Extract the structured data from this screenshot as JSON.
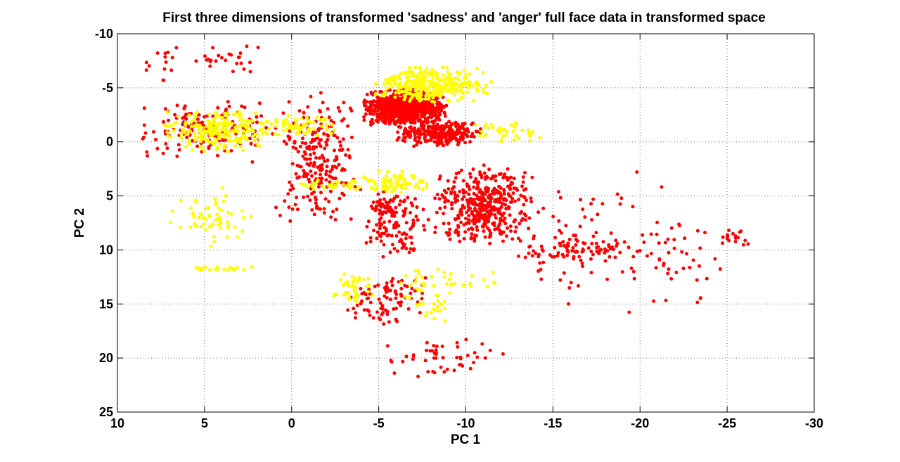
{
  "chart_data": {
    "type": "scatter",
    "title": "First three dimensions of transformed 'sadness' and 'anger' full face data in transformed space",
    "xlabel": "PC 1",
    "ylabel": "PC 2",
    "xlim": [
      10,
      -30
    ],
    "ylim": [
      -10,
      25
    ],
    "x_reversed": true,
    "y_reversed": true,
    "xticks": [
      10,
      5,
      0,
      -5,
      -10,
      -15,
      -20,
      -25,
      -30
    ],
    "yticks": [
      -10,
      -5,
      0,
      5,
      10,
      15,
      20,
      25
    ],
    "grid": true,
    "series": [
      {
        "color": "#ff0000",
        "clusters": [
          {
            "x": [
              -4,
              -9
            ],
            "y": [
              -5,
              -1.5
            ],
            "n": 950
          },
          {
            "x": [
              -6,
              -11
            ],
            "y": [
              -2,
              0.5
            ],
            "n": 260
          },
          {
            "x": [
              -8,
              -14
            ],
            "y": [
              2,
              10
            ],
            "n": 420
          },
          {
            "x": [
              -4,
              -8
            ],
            "y": [
              4,
              11
            ],
            "n": 140
          },
          {
            "x": [
              1,
              -4
            ],
            "y": [
              -5,
              8
            ],
            "n": 240
          },
          {
            "x": [
              9,
              1
            ],
            "y": [
              -4,
              2
            ],
            "n": 150
          },
          {
            "x": [
              -3,
              -8
            ],
            "y": [
              12,
              17
            ],
            "n": 90
          },
          {
            "x": [
              -13,
              -20
            ],
            "y": [
              9,
              11
            ],
            "n": 70
          },
          {
            "x": [
              -12,
              -22
            ],
            "y": [
              2,
              16
            ],
            "n": 80
          },
          {
            "x": [
              -4,
              -13
            ],
            "y": [
              18,
              22
            ],
            "n": 50
          },
          {
            "x": [
              -18,
              -26
            ],
            "y": [
              5,
              17
            ],
            "n": 40
          },
          {
            "x": [
              -24.5,
              -26.7
            ],
            "y": [
              8,
              10
            ],
            "n": 18
          },
          {
            "x": [
              6,
              1
            ],
            "y": [
              -9.5,
              -6
            ],
            "n": 25
          },
          {
            "x": [
              8.5,
              6
            ],
            "y": [
              -9.5,
              -5
            ],
            "n": 14
          }
        ]
      },
      {
        "color": "#ffff00",
        "clusters": [
          {
            "x": [
              -4.5,
              -11.5
            ],
            "y": [
              -7,
              -3.5
            ],
            "n": 330
          },
          {
            "x": [
              7.5,
              1
            ],
            "y": [
              -3,
              1
            ],
            "n": 220
          },
          {
            "x": [
              2,
              -3
            ],
            "y": [
              -2.5,
              -0.5
            ],
            "n": 70
          },
          {
            "x": [
              -4,
              -8
            ],
            "y": [
              2.5,
              5
            ],
            "n": 80
          },
          {
            "x": [
              0,
              -5
            ],
            "y": [
              3.5,
              4.5
            ],
            "n": 40
          },
          {
            "x": [
              7,
              2
            ],
            "y": [
              4,
              10
            ],
            "n": 60
          },
          {
            "x": [
              6,
              2
            ],
            "y": [
              11.5,
              12
            ],
            "n": 20
          },
          {
            "x": [
              -2,
              -5
            ],
            "y": [
              12,
              15
            ],
            "n": 45
          },
          {
            "x": [
              -6,
              -12
            ],
            "y": [
              11.5,
              14.5
            ],
            "n": 40
          },
          {
            "x": [
              -10,
              -14.5
            ],
            "y": [
              -2,
              0
            ],
            "n": 40
          },
          {
            "x": [
              -7,
              -9
            ],
            "y": [
              14,
              17
            ],
            "n": 20
          }
        ]
      }
    ]
  }
}
